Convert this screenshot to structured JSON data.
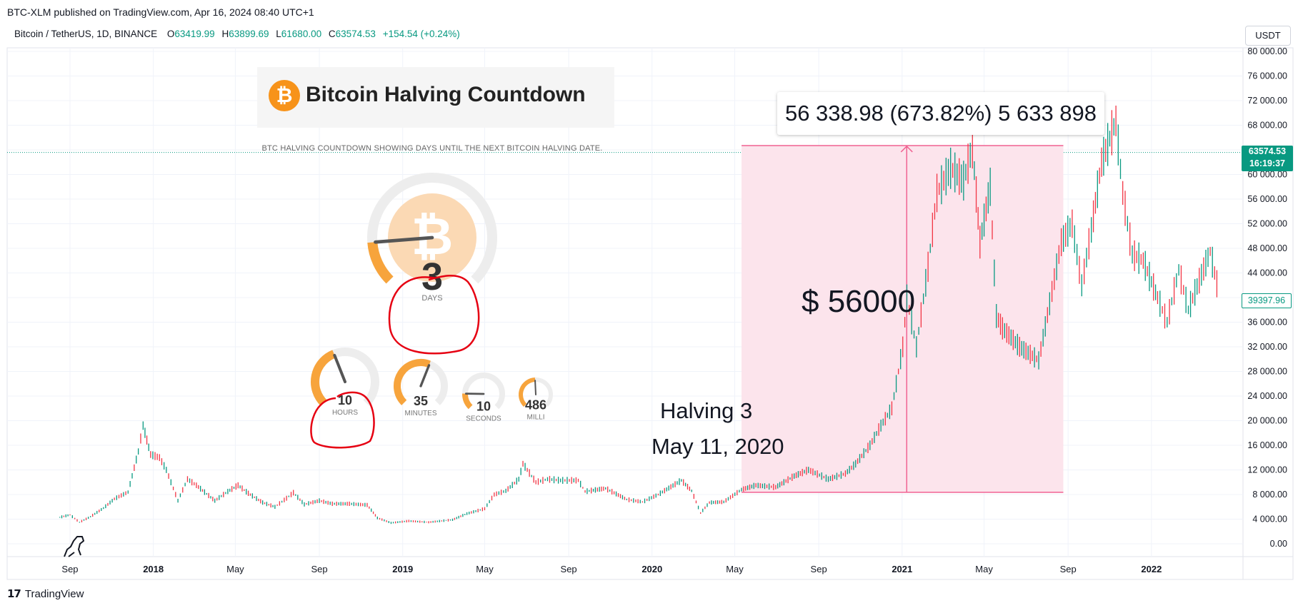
{
  "header": {
    "published": "BTC-XLM published on TradingView.com, Apr 16, 2024 08:40 UTC+1"
  },
  "legend": {
    "symbol": "Bitcoin / TetherUS, 1D, BINANCE",
    "o_label": "O",
    "o_value": "63419.99",
    "h_label": "H",
    "h_value": "63899.69",
    "l_label": "L",
    "l_value": "61680.00",
    "c_label": "C",
    "c_value": "63574.53",
    "change": "+154.54 (+0.24%)"
  },
  "currency_button": "USDT",
  "price_tags": {
    "last_price": "63574.53",
    "countdown": "16:19:37",
    "cursor_price": "39397.96"
  },
  "widget": {
    "title": "Bitcoin Halving Countdown",
    "subtitle": "BTC HALVING COUNTDOWN SHOWING DAYS UNTIL THE NEXT BITCOIN HALVING DATE.",
    "days": {
      "value": "3",
      "label": "DAYS",
      "fraction": 0.15
    },
    "hours": {
      "value": "10",
      "label": "HOURS",
      "fraction": 0.42
    },
    "minutes": {
      "value": "35",
      "label": "MINUTES",
      "fraction": 0.58
    },
    "seconds": {
      "value": "10",
      "label": "SECONDS",
      "fraction": 0.17
    },
    "milli": {
      "value": "486",
      "label": "MILLI",
      "fraction": 0.49
    }
  },
  "annotations": {
    "measure": "56 338.98 (673.82%) 5 633 898",
    "gain_note": "$ 56000",
    "halving": "Halving 3",
    "halving_date": "May 11, 2020"
  },
  "footer": {
    "brand": "TradingView"
  },
  "colors": {
    "up": "#089981",
    "down": "#f23645",
    "range_fill": "#fce4ec",
    "range_line": "#f06292",
    "bitcoin": "#f7931a"
  },
  "icons": {
    "brand_logo": "tradingview-logo-icon",
    "bitcoin": "bitcoin-icon",
    "dino": "dino-icon"
  },
  "chart_data": {
    "type": "line",
    "series": [
      {
        "x": [
          "2017-08-17",
          "2017-09-01",
          "2017-09-15",
          "2017-10-01",
          "2017-10-20",
          "2017-11-05",
          "2017-11-25",
          "2017-12-10",
          "2017-12-17",
          "2017-12-28",
          "2018-01-10",
          "2018-01-20",
          "2018-02-06",
          "2018-02-20",
          "2018-03-05",
          "2018-04-01",
          "2018-04-20",
          "2018-05-05",
          "2018-05-20",
          "2018-06-10",
          "2018-06-28",
          "2018-07-15",
          "2018-07-25",
          "2018-08-10",
          "2018-09-01",
          "2018-09-20",
          "2018-10-15",
          "2018-11-10",
          "2018-11-25",
          "2018-12-15",
          "2019-01-10",
          "2019-02-08",
          "2019-03-15",
          "2019-04-05",
          "2019-05-01",
          "2019-05-15",
          "2019-06-01",
          "2019-06-20",
          "2019-06-26",
          "2019-07-15",
          "2019-08-01",
          "2019-08-20",
          "2019-09-15",
          "2019-09-25",
          "2019-10-25",
          "2019-11-25",
          "2019-12-18",
          "2020-01-10",
          "2020-02-13",
          "2020-02-28",
          "2020-03-12",
          "2020-03-25",
          "2020-04-15",
          "2020-05-11",
          "2020-06-01",
          "2020-06-30",
          "2020-07-27",
          "2020-08-17",
          "2020-09-15",
          "2020-10-10",
          "2020-10-25",
          "2020-11-15",
          "2020-12-01",
          "2020-12-17",
          "2021-01-02",
          "2021-01-08",
          "2021-01-22",
          "2021-02-08",
          "2021-02-21",
          "2021-03-13",
          "2021-04-01",
          "2021-04-14",
          "2021-04-25",
          "2021-05-10",
          "2021-05-19",
          "2021-05-28",
          "2021-06-22",
          "2021-07-20",
          "2021-08-05",
          "2021-08-22",
          "2021-09-07",
          "2021-09-21",
          "2021-10-05",
          "2021-10-20",
          "2021-11-10",
          "2021-11-20",
          "2021-12-04",
          "2021-12-20",
          "2022-01-10",
          "2022-01-24",
          "2022-02-10",
          "2022-02-24",
          "2022-03-28",
          "2022-04-10"
        ],
        "y": [
          4300,
          4700,
          3500,
          4400,
          5800,
          7300,
          8400,
          15000,
          19200,
          14500,
          14000,
          12000,
          7000,
          10500,
          9500,
          7000,
          8500,
          9500,
          8200,
          6700,
          6000,
          7400,
          8300,
          6400,
          7000,
          6500,
          6500,
          6300,
          4200,
          3400,
          3700,
          3500,
          3900,
          4900,
          5700,
          8000,
          8600,
          10500,
          13000,
          10000,
          10500,
          10300,
          10300,
          8500,
          9000,
          7200,
          6800,
          8000,
          10300,
          8600,
          5000,
          6700,
          6800,
          8800,
          9500,
          9200,
          11000,
          12000,
          10500,
          11400,
          13000,
          16000,
          19200,
          22000,
          32000,
          40000,
          32000,
          45000,
          57000,
          61000,
          59000,
          64500,
          49000,
          58000,
          37000,
          35000,
          32000,
          29800,
          39000,
          49000,
          52000,
          42000,
          51000,
          62000,
          68700,
          57000,
          47000,
          46000,
          40000,
          36000,
          44500,
          38000,
          47500,
          40500
        ]
      }
    ],
    "ylim": [
      0,
      80000
    ],
    "y_ticks": [
      "0.00",
      "4 000.00",
      "8 000.00",
      "12 000.00",
      "16 000.00",
      "20 000.00",
      "24 000.00",
      "28 000.00",
      "32 000.00",
      "36 000.00",
      "40 000.00",
      "44 000.00",
      "48 000.00",
      "52 000.00",
      "56 000.00",
      "60 000.00",
      "64 000.00",
      "68 000.00",
      "72 000.00",
      "76 000.00",
      "80 000.00"
    ],
    "x_ticks": [
      {
        "label": "Sep",
        "date": "2017-09-01",
        "bold": false
      },
      {
        "label": "2018",
        "date": "2018-01-01",
        "bold": true
      },
      {
        "label": "May",
        "date": "2018-05-01",
        "bold": false
      },
      {
        "label": "Sep",
        "date": "2018-09-01",
        "bold": false
      },
      {
        "label": "2019",
        "date": "2019-01-01",
        "bold": true
      },
      {
        "label": "May",
        "date": "2019-05-01",
        "bold": false
      },
      {
        "label": "Sep",
        "date": "2019-09-01",
        "bold": false
      },
      {
        "label": "2020",
        "date": "2020-01-01",
        "bold": true
      },
      {
        "label": "May",
        "date": "2020-05-01",
        "bold": false
      },
      {
        "label": "Sep",
        "date": "2020-09-01",
        "bold": false
      },
      {
        "label": "2021",
        "date": "2021-01-01",
        "bold": true
      },
      {
        "label": "May",
        "date": "2021-05-01",
        "bold": false
      },
      {
        "label": "Sep",
        "date": "2021-09-01",
        "bold": false
      },
      {
        "label": "2022",
        "date": "2022-01-01",
        "bold": true
      }
    ],
    "x_range": [
      "2017-06-01",
      "2022-05-15"
    ],
    "price_range_box": {
      "x_start": "2020-05-11",
      "x_end": "2021-08-25",
      "y_low": 8360,
      "y_high": 64700
    },
    "last_price": 63574.53,
    "grid": true,
    "legend": "top-left"
  }
}
